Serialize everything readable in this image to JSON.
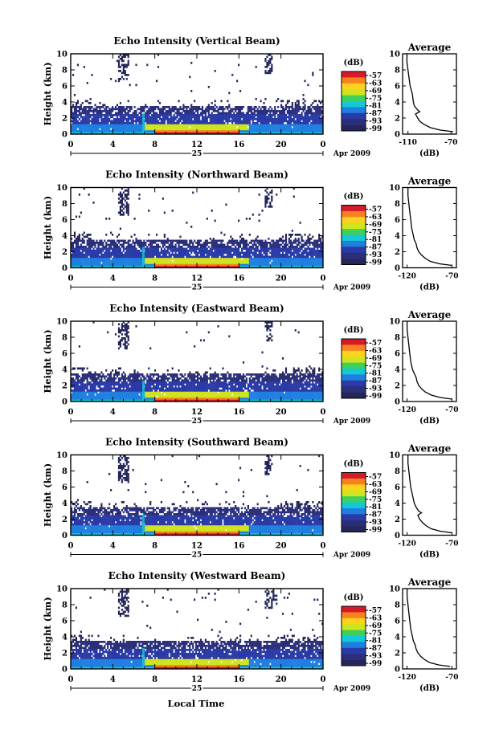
{
  "figure": {
    "xlabel": "Local Time",
    "date_label": "Apr 2009",
    "day_label": "25"
  },
  "colorbar": {
    "unit": "(dB)",
    "ticks": [
      "-57",
      "-63",
      "-69",
      "-75",
      "-81",
      "-87",
      "-93",
      "-99"
    ],
    "colors": [
      "#d7192a",
      "#f5821f",
      "#ffd21f",
      "#cfe31f",
      "#3fcf5c",
      "#14c8d8",
      "#1f7fe0",
      "#2a3aa6",
      "#2b2f7a",
      "#25265a"
    ]
  },
  "chart_data": [
    {
      "type": "heatmap",
      "title": "Echo Intensity (Vertical Beam)",
      "xlabel": "Local Time",
      "ylabel": "Height (km)",
      "xlim": [
        0,
        24
      ],
      "ylim": [
        0,
        10
      ],
      "xticks": [
        "0",
        "4",
        "8",
        "12",
        "16",
        "20",
        "0"
      ],
      "yticks": [
        "0",
        "2",
        "4",
        "6",
        "8",
        "10"
      ],
      "colorbar_unit": "(dB)",
      "colorbar_ticks": [
        "-57",
        "-63",
        "-69",
        "-75",
        "-81",
        "-87",
        "-93",
        "-99"
      ],
      "average_profile": {
        "title": "Average",
        "xlabel": "(dB)",
        "xticks": [
          "-110",
          "-70"
        ],
        "xlim": [
          -115,
          -65
        ],
        "yticks": [
          "0",
          "2",
          "4",
          "6",
          "8",
          "10"
        ],
        "ylim": [
          0,
          10
        ],
        "height_km": [
          0.3,
          0.5,
          0.8,
          1.2,
          1.6,
          2.0,
          2.5,
          2.8,
          3.0,
          3.5,
          4.0,
          5.0,
          6.0,
          7.0,
          8.0,
          9.0,
          10.0
        ],
        "echo_db": [
          -68,
          -80,
          -89,
          -95,
          -99,
          -101,
          -103,
          -99,
          -101,
          -104,
          -105,
          -106,
          -108,
          -109,
          -110,
          -111,
          -111
        ]
      }
    },
    {
      "type": "heatmap",
      "title": "Echo Intensity (Northward Beam)",
      "xlabel": "Local Time",
      "ylabel": "Height (km)",
      "xlim": [
        0,
        24
      ],
      "ylim": [
        0,
        10
      ],
      "xticks": [
        "0",
        "4",
        "8",
        "12",
        "16",
        "20",
        "0"
      ],
      "yticks": [
        "0",
        "2",
        "4",
        "6",
        "8",
        "10"
      ],
      "colorbar_unit": "(dB)",
      "colorbar_ticks": [
        "-57",
        "-63",
        "-69",
        "-75",
        "-81",
        "-87",
        "-93",
        "-99"
      ],
      "average_profile": {
        "title": "Average",
        "xlabel": "(dB)",
        "xticks": [
          "-120",
          "-70"
        ],
        "xlim": [
          -125,
          -65
        ],
        "yticks": [
          "0",
          "2",
          "4",
          "6",
          "8",
          "10"
        ],
        "ylim": [
          0,
          10
        ],
        "height_km": [
          0.3,
          0.5,
          0.8,
          1.2,
          1.6,
          2.0,
          2.5,
          3.0,
          3.5,
          4.0,
          5.0,
          6.0,
          7.0,
          8.0,
          9.0,
          10.0
        ],
        "echo_db": [
          -70,
          -84,
          -94,
          -100,
          -104,
          -107,
          -109,
          -110,
          -112,
          -113,
          -115,
          -116,
          -117,
          -118,
          -119,
          -119
        ]
      }
    },
    {
      "type": "heatmap",
      "title": "Echo Intensity (Eastward Beam)",
      "xlabel": "Local Time",
      "ylabel": "Height (km)",
      "xlim": [
        0,
        24
      ],
      "ylim": [
        0,
        10
      ],
      "xticks": [
        "0",
        "4",
        "8",
        "12",
        "16",
        "20",
        "0"
      ],
      "yticks": [
        "0",
        "2",
        "4",
        "6",
        "8",
        "10"
      ],
      "colorbar_unit": "(dB)",
      "colorbar_ticks": [
        "-57",
        "-63",
        "-69",
        "-75",
        "-81",
        "-87",
        "-93",
        "-99"
      ],
      "average_profile": {
        "title": "Average",
        "xlabel": "(dB)",
        "xticks": [
          "-120",
          "-70"
        ],
        "xlim": [
          -125,
          -65
        ],
        "yticks": [
          "0",
          "2",
          "4",
          "6",
          "8",
          "10"
        ],
        "ylim": [
          0,
          10
        ],
        "height_km": [
          0.3,
          0.5,
          0.8,
          1.2,
          1.6,
          2.0,
          2.5,
          3.0,
          3.5,
          4.0,
          5.0,
          6.0,
          7.0,
          8.0,
          9.0,
          10.0
        ],
        "echo_db": [
          -70,
          -83,
          -93,
          -100,
          -104,
          -107,
          -109,
          -110,
          -112,
          -114,
          -116,
          -117,
          -118,
          -119,
          -120,
          -120
        ]
      }
    },
    {
      "type": "heatmap",
      "title": "Echo Intensity (Southward Beam)",
      "xlabel": "Local Time",
      "ylabel": "Height (km)",
      "xlim": [
        0,
        24
      ],
      "ylim": [
        0,
        10
      ],
      "xticks": [
        "0",
        "4",
        "8",
        "12",
        "16",
        "20",
        "0"
      ],
      "yticks": [
        "0",
        "2",
        "4",
        "6",
        "8",
        "10"
      ],
      "colorbar_unit": "(dB)",
      "colorbar_ticks": [
        "-57",
        "-63",
        "-69",
        "-75",
        "-81",
        "-87",
        "-93",
        "-99"
      ],
      "average_profile": {
        "title": "Average",
        "xlabel": "(dB)",
        "xticks": [
          "-120",
          "-70"
        ],
        "xlim": [
          -125,
          -65
        ],
        "yticks": [
          "0",
          "2",
          "4",
          "6",
          "8",
          "10"
        ],
        "ylim": [
          0,
          10
        ],
        "height_km": [
          0.3,
          0.5,
          0.8,
          1.2,
          1.6,
          2.0,
          2.5,
          2.8,
          3.0,
          3.5,
          4.0,
          5.0,
          6.0,
          7.0,
          8.0,
          9.0,
          10.0
        ],
        "echo_db": [
          -70,
          -83,
          -93,
          -99,
          -103,
          -106,
          -108,
          -104,
          -107,
          -110,
          -112,
          -114,
          -116,
          -117,
          -118,
          -119,
          -119
        ]
      }
    },
    {
      "type": "heatmap",
      "title": "Echo Intensity (Westward Beam)",
      "xlabel": "Local Time",
      "ylabel": "Height (km)",
      "xlim": [
        0,
        24
      ],
      "ylim": [
        0,
        10
      ],
      "xticks": [
        "0",
        "4",
        "8",
        "12",
        "16",
        "20",
        "0"
      ],
      "yticks": [
        "0",
        "2",
        "4",
        "6",
        "8",
        "10"
      ],
      "colorbar_unit": "(dB)",
      "colorbar_ticks": [
        "-57",
        "-63",
        "-69",
        "-75",
        "-81",
        "-87",
        "-93",
        "-99"
      ],
      "average_profile": {
        "title": "Average",
        "xlabel": "(dB)",
        "xticks": [
          "-120",
          "-70"
        ],
        "xlim": [
          -125,
          -65
        ],
        "yticks": [
          "0",
          "2",
          "4",
          "6",
          "8",
          "10"
        ],
        "ylim": [
          0,
          10
        ],
        "height_km": [
          0.3,
          0.5,
          0.8,
          1.2,
          1.6,
          2.0,
          2.5,
          3.0,
          3.5,
          4.0,
          5.0,
          6.0,
          7.0,
          8.0,
          9.0,
          10.0
        ],
        "echo_db": [
          -72,
          -85,
          -95,
          -101,
          -105,
          -108,
          -110,
          -111,
          -113,
          -114,
          -116,
          -117,
          -118,
          -119,
          -120,
          -120
        ]
      }
    }
  ]
}
